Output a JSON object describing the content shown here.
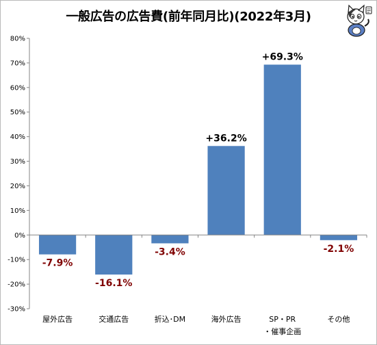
{
  "chart_data": {
    "type": "bar",
    "title": "一般広告の広告費(前年同月比)(2022年3月)",
    "categories": [
      "屋外広告",
      "交通広告",
      "折込･DM",
      "海外広告",
      "SP・PR・催事企画",
      "その他"
    ],
    "category_lines": [
      [
        "屋外広告"
      ],
      [
        "交通広告"
      ],
      [
        "折込･DM"
      ],
      [
        "海外広告"
      ],
      [
        "SP・PR",
        "・催事企画"
      ],
      [
        "その他"
      ]
    ],
    "values": [
      -7.9,
      -16.1,
      -3.4,
      36.2,
      69.3,
      -2.1
    ],
    "value_labels": [
      "-7.9%",
      "-16.1%",
      "-3.4%",
      "+36.2%",
      "+69.3%",
      "-2.1%"
    ],
    "ylim": [
      -30,
      80
    ],
    "yticks": [
      80,
      70,
      60,
      50,
      40,
      30,
      20,
      10,
      0,
      -10,
      -20,
      -30
    ],
    "ytick_labels": [
      "80%",
      "70%",
      "60%",
      "50%",
      "40%",
      "30%",
      "20%",
      "10%",
      "0%",
      "-10%",
      "-20%",
      "-30%"
    ],
    "xlabel": "",
    "ylabel": "",
    "grid": false,
    "colors": {
      "bar": "#4f81bd",
      "positive_label": "#000000",
      "negative_label": "#7f0000",
      "axis": "#868686"
    }
  },
  "mascot": {
    "icon": "cat-mascot-icon"
  }
}
